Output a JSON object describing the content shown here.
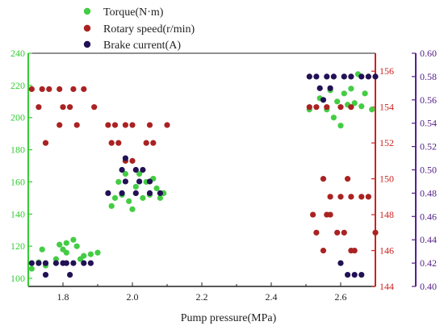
{
  "chart_data": {
    "type": "scatter",
    "xlabel": "Pump pressure(MPa)",
    "xlim": [
      1.7,
      2.7
    ],
    "xticks": [
      1.8,
      2.0,
      2.2,
      2.4,
      2.6
    ],
    "xtick_labels": [
      "1.8",
      "2.0",
      "2.2",
      "2.4",
      "2.6"
    ],
    "axes": {
      "left": {
        "ylim": [
          95,
          240
        ],
        "ticks": [
          100,
          120,
          140,
          160,
          180,
          200,
          220,
          240
        ],
        "tick_labels": [
          "100",
          "120",
          "140",
          "160",
          "180",
          "200",
          "220",
          "240"
        ],
        "color": "#33cc33"
      },
      "right1": {
        "ylim": [
          144,
          157
        ],
        "ticks": [
          144,
          146,
          148,
          150,
          152,
          154,
          156
        ],
        "tick_labels": [
          "144",
          "146",
          "148",
          "150",
          "152",
          "154",
          "156"
        ],
        "color": "#cc2222"
      },
      "right2": {
        "ylim": [
          0.4,
          0.6
        ],
        "ticks": [
          0.4,
          0.42,
          0.44,
          0.46,
          0.48,
          0.5,
          0.52,
          0.54,
          0.56,
          0.58,
          0.6
        ],
        "tick_labels": [
          "0.40",
          "0.42",
          "0.44",
          "0.46",
          "0.48",
          "0.50",
          "0.52",
          "0.54",
          "0.56",
          "0.58",
          "0.60"
        ],
        "color": "#552288"
      }
    },
    "grid": false,
    "legend": "top-center",
    "series": [
      {
        "name": "Torque(N·m)",
        "axis": "left",
        "color": "#44cc44",
        "points": [
          [
            1.71,
            106
          ],
          [
            1.73,
            110
          ],
          [
            1.75,
            108
          ],
          [
            1.74,
            118
          ],
          [
            1.78,
            112
          ],
          [
            1.8,
            118
          ],
          [
            1.79,
            121
          ],
          [
            1.81,
            116
          ],
          [
            1.81,
            122
          ],
          [
            1.83,
            124
          ],
          [
            1.84,
            120
          ],
          [
            1.86,
            114
          ],
          [
            1.88,
            115
          ],
          [
            1.9,
            116
          ],
          [
            1.85,
            112
          ],
          [
            1.94,
            145
          ],
          [
            1.95,
            150
          ],
          [
            1.96,
            160
          ],
          [
            1.97,
            152
          ],
          [
            1.98,
            165
          ],
          [
            1.99,
            148
          ],
          [
            2.0,
            143
          ],
          [
            2.01,
            157
          ],
          [
            2.02,
            165
          ],
          [
            2.03,
            150
          ],
          [
            2.04,
            160
          ],
          [
            2.05,
            152
          ],
          [
            2.06,
            162
          ],
          [
            2.07,
            156
          ],
          [
            2.08,
            150
          ],
          [
            2.09,
            153
          ],
          [
            2.51,
            205
          ],
          [
            2.54,
            212
          ],
          [
            2.56,
            205
          ],
          [
            2.57,
            217
          ],
          [
            2.58,
            200
          ],
          [
            2.59,
            210
          ],
          [
            2.6,
            195
          ],
          [
            2.61,
            215
          ],
          [
            2.62,
            208
          ],
          [
            2.63,
            218
          ],
          [
            2.64,
            209
          ],
          [
            2.65,
            227
          ],
          [
            2.66,
            207
          ],
          [
            2.67,
            215
          ],
          [
            2.69,
            205
          ]
        ]
      },
      {
        "name": "Rotary speed(r/min)",
        "axis": "right1",
        "color": "#aa2222",
        "points": [
          [
            1.71,
            155
          ],
          [
            1.74,
            155
          ],
          [
            1.76,
            155
          ],
          [
            1.73,
            154
          ],
          [
            1.75,
            152
          ],
          [
            1.79,
            155
          ],
          [
            1.83,
            155
          ],
          [
            1.86,
            155
          ],
          [
            1.8,
            154
          ],
          [
            1.82,
            154
          ],
          [
            1.89,
            154
          ],
          [
            1.79,
            153
          ],
          [
            1.84,
            153
          ],
          [
            1.93,
            153
          ],
          [
            1.95,
            153
          ],
          [
            1.98,
            153
          ],
          [
            2.0,
            153
          ],
          [
            2.05,
            153
          ],
          [
            2.1,
            153
          ],
          [
            1.94,
            152
          ],
          [
            1.96,
            152
          ],
          [
            2.04,
            152
          ],
          [
            2.06,
            152
          ],
          [
            1.98,
            151
          ],
          [
            2.0,
            151
          ],
          [
            2.51,
            154
          ],
          [
            2.53,
            154
          ],
          [
            2.56,
            154
          ],
          [
            2.6,
            154
          ],
          [
            2.63,
            154
          ],
          [
            2.55,
            150
          ],
          [
            2.62,
            150
          ],
          [
            2.57,
            149
          ],
          [
            2.6,
            149
          ],
          [
            2.63,
            149
          ],
          [
            2.66,
            149
          ],
          [
            2.68,
            149
          ],
          [
            2.52,
            148
          ],
          [
            2.56,
            148
          ],
          [
            2.57,
            148
          ],
          [
            2.53,
            147
          ],
          [
            2.59,
            147
          ],
          [
            2.61,
            147
          ],
          [
            2.7,
            147
          ],
          [
            2.55,
            146
          ],
          [
            2.63,
            146
          ],
          [
            2.64,
            146
          ]
        ]
      },
      {
        "name": "Brake current(A)",
        "axis": "right2",
        "color": "#221155",
        "points": [
          [
            1.71,
            0.42
          ],
          [
            1.73,
            0.42
          ],
          [
            1.75,
            0.42
          ],
          [
            1.78,
            0.42
          ],
          [
            1.8,
            0.42
          ],
          [
            1.81,
            0.42
          ],
          [
            1.83,
            0.42
          ],
          [
            1.86,
            0.42
          ],
          [
            1.88,
            0.42
          ],
          [
            1.75,
            0.41
          ],
          [
            1.82,
            0.41
          ],
          [
            1.93,
            0.48
          ],
          [
            1.97,
            0.48
          ],
          [
            2.01,
            0.48
          ],
          [
            2.05,
            0.48
          ],
          [
            2.08,
            0.48
          ],
          [
            1.98,
            0.49
          ],
          [
            2.02,
            0.49
          ],
          [
            2.05,
            0.49
          ],
          [
            1.97,
            0.5
          ],
          [
            2.01,
            0.5
          ],
          [
            2.03,
            0.5
          ],
          [
            1.98,
            0.51
          ],
          [
            2.51,
            0.58
          ],
          [
            2.53,
            0.58
          ],
          [
            2.56,
            0.58
          ],
          [
            2.58,
            0.58
          ],
          [
            2.61,
            0.58
          ],
          [
            2.63,
            0.58
          ],
          [
            2.66,
            0.58
          ],
          [
            2.68,
            0.58
          ],
          [
            2.7,
            0.58
          ],
          [
            2.54,
            0.57
          ],
          [
            2.57,
            0.57
          ],
          [
            2.55,
            0.56
          ],
          [
            2.62,
            0.41
          ],
          [
            2.64,
            0.41
          ],
          [
            2.66,
            0.41
          ],
          [
            2.6,
            0.42
          ]
        ]
      }
    ]
  }
}
